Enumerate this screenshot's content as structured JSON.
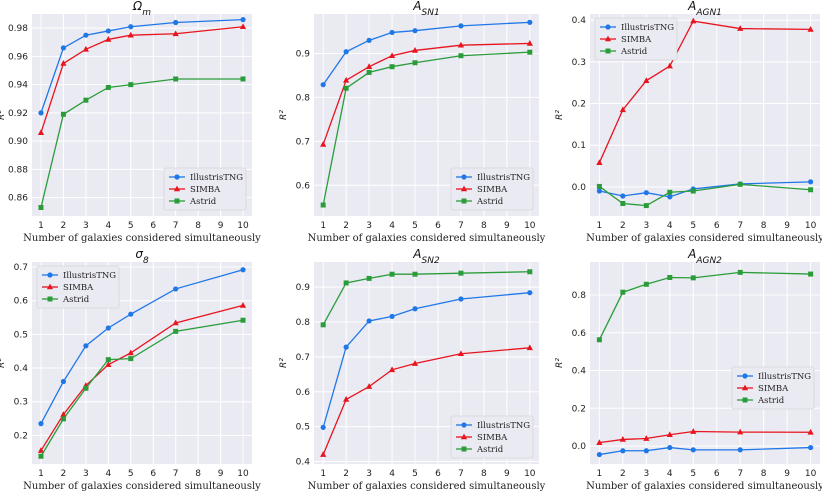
{
  "figure": {
    "y_axis_label": "R²",
    "x_axis_label": "Number of galaxies considered simultaneously"
  },
  "colors": {
    "IllustrisTNG": "#1f77e8",
    "SIMBA": "#e8141e",
    "Astrid": "#2a9d3a"
  },
  "chart_data": [
    {
      "type": "line",
      "title": "Ωm",
      "xlabel": "Number of galaxies considered simultaneously",
      "ylabel": "R²",
      "x": [
        1,
        2,
        3,
        4,
        5,
        7,
        10
      ],
      "xlim": [
        0.6,
        10.4
      ],
      "ylim": [
        0.847,
        0.99
      ],
      "yticks": [
        0.86,
        0.88,
        0.9,
        0.92,
        0.94,
        0.96,
        0.98
      ],
      "ytick_labels": [
        "0.86",
        "0.88",
        "0.90",
        "0.92",
        "0.94",
        "0.96",
        "0.98"
      ],
      "legend": "lower-right",
      "series": [
        {
          "name": "IllustrisTNG",
          "marker": "circle",
          "values": [
            0.92,
            0.966,
            0.975,
            0.978,
            0.981,
            0.984,
            0.986
          ]
        },
        {
          "name": "SIMBA",
          "marker": "triangle",
          "values": [
            0.906,
            0.955,
            0.965,
            0.972,
            0.975,
            0.976,
            0.981
          ]
        },
        {
          "name": "Astrid",
          "marker": "square",
          "values": [
            0.853,
            0.919,
            0.929,
            0.938,
            0.94,
            0.944,
            0.944
          ]
        }
      ]
    },
    {
      "type": "line",
      "title": "ASN1",
      "xlabel": "Number of galaxies considered simultaneously",
      "ylabel": "R²",
      "x": [
        1,
        2,
        3,
        4,
        5,
        7,
        10
      ],
      "xlim": [
        0.6,
        10.4
      ],
      "ylim": [
        0.53,
        0.99
      ],
      "yticks": [
        0.6,
        0.7,
        0.8,
        0.9
      ],
      "ytick_labels": [
        "0.6",
        "0.7",
        "0.8",
        "0.9"
      ],
      "legend": "lower-right",
      "series": [
        {
          "name": "IllustrisTNG",
          "marker": "circle",
          "values": [
            0.829,
            0.904,
            0.93,
            0.948,
            0.952,
            0.963,
            0.971
          ]
        },
        {
          "name": "SIMBA",
          "marker": "triangle",
          "values": [
            0.693,
            0.839,
            0.87,
            0.895,
            0.907,
            0.919,
            0.923
          ]
        },
        {
          "name": "Astrid",
          "marker": "square",
          "values": [
            0.555,
            0.821,
            0.857,
            0.87,
            0.879,
            0.895,
            0.903
          ]
        }
      ]
    },
    {
      "type": "line",
      "title": "AAGN1",
      "xlabel": "Number of galaxies considered simultaneously",
      "ylabel": "R²",
      "x": [
        1,
        2,
        3,
        4,
        5,
        7,
        10
      ],
      "xlim": [
        0.6,
        10.4
      ],
      "ylim": [
        -0.07,
        0.415
      ],
      "yticks": [
        0.0,
        0.1,
        0.2,
        0.3,
        0.4
      ],
      "ytick_labels": [
        "0.0",
        "0.1",
        "0.2",
        "0.3",
        "0.4"
      ],
      "legend": "upper-left",
      "series": [
        {
          "name": "IllustrisTNG",
          "marker": "circle",
          "values": [
            -0.01,
            -0.022,
            -0.014,
            -0.024,
            -0.005,
            0.007,
            0.012
          ]
        },
        {
          "name": "SIMBA",
          "marker": "triangle",
          "values": [
            0.058,
            0.185,
            0.255,
            0.29,
            0.398,
            0.38,
            0.378
          ]
        },
        {
          "name": "Astrid",
          "marker": "square",
          "values": [
            0.001,
            -0.04,
            -0.045,
            -0.013,
            -0.01,
            0.006,
            -0.007
          ]
        }
      ]
    },
    {
      "type": "line",
      "title": "σ8",
      "xlabel": "Number of galaxies considered simultaneously",
      "ylabel": "R²",
      "x": [
        1,
        2,
        3,
        4,
        5,
        7,
        10
      ],
      "xlim": [
        0.6,
        10.4
      ],
      "ylim": [
        0.115,
        0.715
      ],
      "yticks": [
        0.2,
        0.3,
        0.4,
        0.5,
        0.6,
        0.7
      ],
      "ytick_labels": [
        "0.2",
        "0.3",
        "0.4",
        "0.5",
        "0.6",
        "0.7"
      ],
      "legend": "upper-left",
      "series": [
        {
          "name": "IllustrisTNG",
          "marker": "circle",
          "values": [
            0.235,
            0.36,
            0.466,
            0.519,
            0.56,
            0.635,
            0.692
          ]
        },
        {
          "name": "SIMBA",
          "marker": "triangle",
          "values": [
            0.155,
            0.262,
            0.348,
            0.41,
            0.445,
            0.534,
            0.586
          ]
        },
        {
          "name": "Astrid",
          "marker": "square",
          "values": [
            0.138,
            0.249,
            0.34,
            0.425,
            0.428,
            0.509,
            0.542
          ]
        }
      ]
    },
    {
      "type": "line",
      "title": "ASN2",
      "xlabel": "Number of galaxies considered simultaneously",
      "ylabel": "R²",
      "x": [
        1,
        2,
        3,
        4,
        5,
        7,
        10
      ],
      "xlim": [
        0.6,
        10.4
      ],
      "ylim": [
        0.393,
        0.972
      ],
      "yticks": [
        0.4,
        0.5,
        0.6,
        0.7,
        0.8,
        0.9
      ],
      "ytick_labels": [
        "0.4",
        "0.5",
        "0.6",
        "0.7",
        "0.8",
        "0.9"
      ],
      "legend": "lower-right",
      "series": [
        {
          "name": "IllustrisTNG",
          "marker": "circle",
          "values": [
            0.498,
            0.728,
            0.803,
            0.816,
            0.838,
            0.866,
            0.884
          ]
        },
        {
          "name": "SIMBA",
          "marker": "triangle",
          "values": [
            0.42,
            0.578,
            0.615,
            0.663,
            0.681,
            0.709,
            0.726
          ]
        },
        {
          "name": "Astrid",
          "marker": "square",
          "values": [
            0.792,
            0.912,
            0.925,
            0.937,
            0.937,
            0.94,
            0.944
          ]
        }
      ]
    },
    {
      "type": "line",
      "title": "AAGN2",
      "xlabel": "Number of galaxies considered simultaneously",
      "ylabel": "R²",
      "x": [
        1,
        2,
        3,
        4,
        5,
        7,
        10
      ],
      "xlim": [
        0.6,
        10.4
      ],
      "ylim": [
        -0.095,
        0.975
      ],
      "yticks": [
        0.0,
        0.2,
        0.4,
        0.6,
        0.8
      ],
      "ytick_labels": [
        "0.0",
        "0.2",
        "0.4",
        "0.6",
        "0.8"
      ],
      "legend": "center-right",
      "series": [
        {
          "name": "IllustrisTNG",
          "marker": "circle",
          "values": [
            -0.045,
            -0.025,
            -0.025,
            -0.008,
            -0.02,
            -0.02,
            -0.008
          ]
        },
        {
          "name": "SIMBA",
          "marker": "triangle",
          "values": [
            0.018,
            0.035,
            0.04,
            0.06,
            0.077,
            0.074,
            0.073
          ]
        },
        {
          "name": "Astrid",
          "marker": "square",
          "values": [
            0.563,
            0.815,
            0.857,
            0.893,
            0.891,
            0.92,
            0.911
          ]
        }
      ]
    }
  ]
}
